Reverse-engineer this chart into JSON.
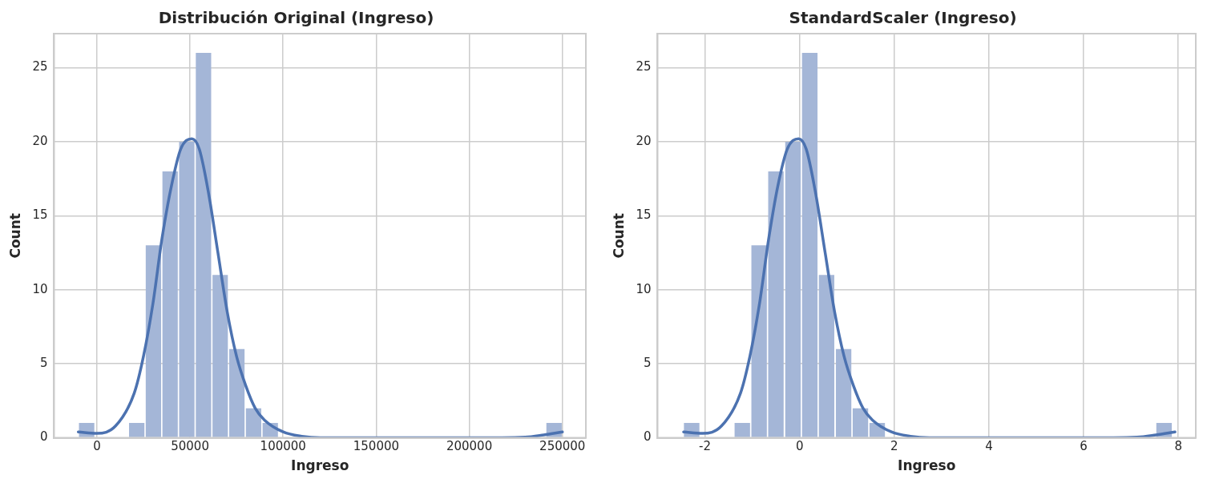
{
  "chart_data": [
    {
      "type": "histogram",
      "title": "Distribución Original (Ingreso)",
      "xlabel": "Ingreso",
      "ylabel": "Count",
      "color": "#a4b6d7",
      "bins": [
        -10000,
        -1034,
        16897,
        25862,
        34828,
        43793,
        52759,
        61724,
        70690,
        79655,
        88621,
        97586,
        241034,
        250000
      ],
      "values": [
        1,
        0,
        1,
        13,
        18,
        20,
        26,
        11,
        6,
        2,
        1,
        0,
        1
      ],
      "xlim": [
        -23000,
        262600
      ],
      "xticks": [
        0,
        50000,
        100000,
        150000,
        200000,
        250000
      ],
      "ylim": [
        0,
        27.3
      ],
      "yticks": [
        0,
        5,
        10,
        15,
        20,
        25
      ],
      "grid": true,
      "series": [
        {
          "type": "line",
          "color": "#4c72b0",
          "x": [
            -10000,
            0,
            10000,
            20000,
            25000,
            30000,
            35000,
            40000,
            45000,
            51000,
            55000,
            60000,
            65000,
            70000,
            75000,
            80000,
            85000,
            90000,
            100000,
            110000,
            120000,
            150000,
            200000,
            230000,
            240000,
            250000
          ],
          "values": [
            0.4,
            0.3,
            0.8,
            3,
            5.5,
            9,
            13.5,
            17,
            19.5,
            20.2,
            19.5,
            16.5,
            12.5,
            8.5,
            5.5,
            3.5,
            2,
            1.2,
            0.4,
            0.1,
            0,
            0,
            0,
            0.05,
            0.2,
            0.4
          ]
        }
      ]
    },
    {
      "type": "histogram",
      "title": "StandardScaler (Ingreso)",
      "xlabel": "Ingreso",
      "ylabel": "Count",
      "color": "#a4b6d7",
      "bins": [
        -2.46,
        -2.1,
        -1.39,
        -1.03,
        -0.68,
        -0.32,
        0.04,
        0.39,
        0.75,
        1.11,
        1.46,
        1.82,
        7.52,
        7.88
      ],
      "values": [
        1,
        0,
        1,
        13,
        18,
        20,
        26,
        11,
        6,
        2,
        1,
        0,
        1
      ],
      "xlim": [
        -3.0,
        8.37
      ],
      "xticks": [
        -2,
        0,
        2,
        4,
        6,
        8
      ],
      "ylim": [
        0,
        27.3
      ],
      "yticks": [
        0,
        5,
        10,
        15,
        20,
        25
      ],
      "grid": true,
      "series": [
        {
          "type": "line",
          "color": "#4c72b0",
          "x": [
            -2.45,
            -2.05,
            -1.65,
            -1.25,
            -1.05,
            -0.85,
            -0.65,
            -0.46,
            -0.26,
            -0.02,
            0.14,
            0.34,
            0.54,
            0.74,
            0.94,
            1.14,
            1.34,
            1.54,
            1.94,
            2.34,
            2.74,
            3.94,
            5.93,
            7.13,
            7.53,
            7.93
          ],
          "values": [
            0.4,
            0.3,
            0.8,
            3,
            5.5,
            9,
            13.5,
            17,
            19.5,
            20.2,
            19.5,
            16.5,
            12.5,
            8.5,
            5.5,
            3.5,
            2,
            1.2,
            0.4,
            0.1,
            0,
            0,
            0,
            0.05,
            0.2,
            0.4
          ]
        }
      ]
    }
  ]
}
